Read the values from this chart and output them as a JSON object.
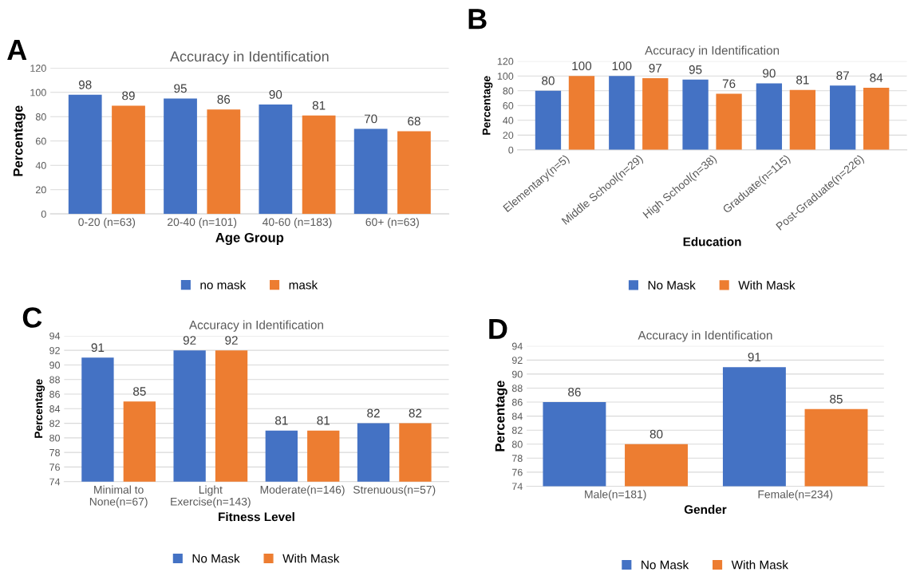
{
  "chart_data": [
    {
      "type": "bar",
      "title": "Accuracy in Identification",
      "xlabel": "Age Group",
      "ylabel": "Percentage",
      "annotations": [
        "A"
      ],
      "categories": [
        "0-20 (n=63)",
        "20-40 (n=101)",
        "40-60 (n=183)",
        "60+ (n=63)"
      ],
      "series": [
        {
          "name": "no mask",
          "color": "#4472c4",
          "values": [
            98,
            95,
            90,
            70
          ]
        },
        {
          "name": "mask",
          "color": "#ed7d31",
          "values": [
            89,
            86,
            81,
            68
          ]
        }
      ],
      "ylim": [
        0,
        120
      ],
      "yticks": [
        0,
        20,
        40,
        60,
        80,
        100,
        120
      ],
      "grid": "y",
      "legend": "bottom",
      "data_labels": true
    },
    {
      "type": "bar",
      "title": "Accuracy in Identification",
      "xlabel": "Education",
      "ylabel": "Percentage",
      "annotations": [
        "B"
      ],
      "categories": [
        "Elementary(n=5)",
        "Middle School(n=29)",
        "High School(n=38)",
        "Graduate(n=115)",
        "Post-Graduate(n=226)"
      ],
      "series": [
        {
          "name": "No Mask",
          "color": "#4472c4",
          "values": [
            80,
            100,
            95,
            90,
            87
          ]
        },
        {
          "name": "With Mask",
          "color": "#ed7d31",
          "values": [
            100,
            97,
            76,
            81,
            84
          ]
        }
      ],
      "ylim": [
        0,
        120
      ],
      "yticks": [
        0,
        20,
        40,
        60,
        80,
        100,
        120
      ],
      "grid": "y",
      "legend": "bottom",
      "data_labels": true
    },
    {
      "type": "bar",
      "title": "Accuracy in Identification",
      "xlabel": "Fitness Level",
      "ylabel": "Percentage",
      "annotations": [
        "C"
      ],
      "categories": [
        "Minimal to\nNone(n=67)",
        "Light\nExercise(n=143)",
        "Moderate(n=146)",
        "Strenuous(n=57)"
      ],
      "series": [
        {
          "name": "No Mask",
          "color": "#4472c4",
          "values": [
            91,
            92,
            81,
            82
          ]
        },
        {
          "name": "With Mask",
          "color": "#ed7d31",
          "values": [
            85,
            92,
            81,
            82
          ]
        }
      ],
      "ylim": [
        74,
        94
      ],
      "yticks": [
        74,
        76,
        78,
        80,
        82,
        84,
        86,
        88,
        90,
        92,
        94
      ],
      "grid": "y",
      "legend": "bottom",
      "data_labels": true
    },
    {
      "type": "bar",
      "title": "Accuracy in Identification",
      "xlabel": "Gender",
      "ylabel": "Percentage",
      "annotations": [
        "D"
      ],
      "categories": [
        "Male(n=181)",
        "Female(n=234)"
      ],
      "series": [
        {
          "name": "No Mask",
          "color": "#4472c4",
          "values": [
            86,
            91
          ]
        },
        {
          "name": "With Mask",
          "color": "#ed7d31",
          "values": [
            80,
            85
          ]
        }
      ],
      "ylim": [
        74,
        94
      ],
      "yticks": [
        74,
        76,
        78,
        80,
        82,
        84,
        86,
        88,
        90,
        92,
        94
      ],
      "grid": "y",
      "legend": "bottom",
      "data_labels": true
    }
  ]
}
